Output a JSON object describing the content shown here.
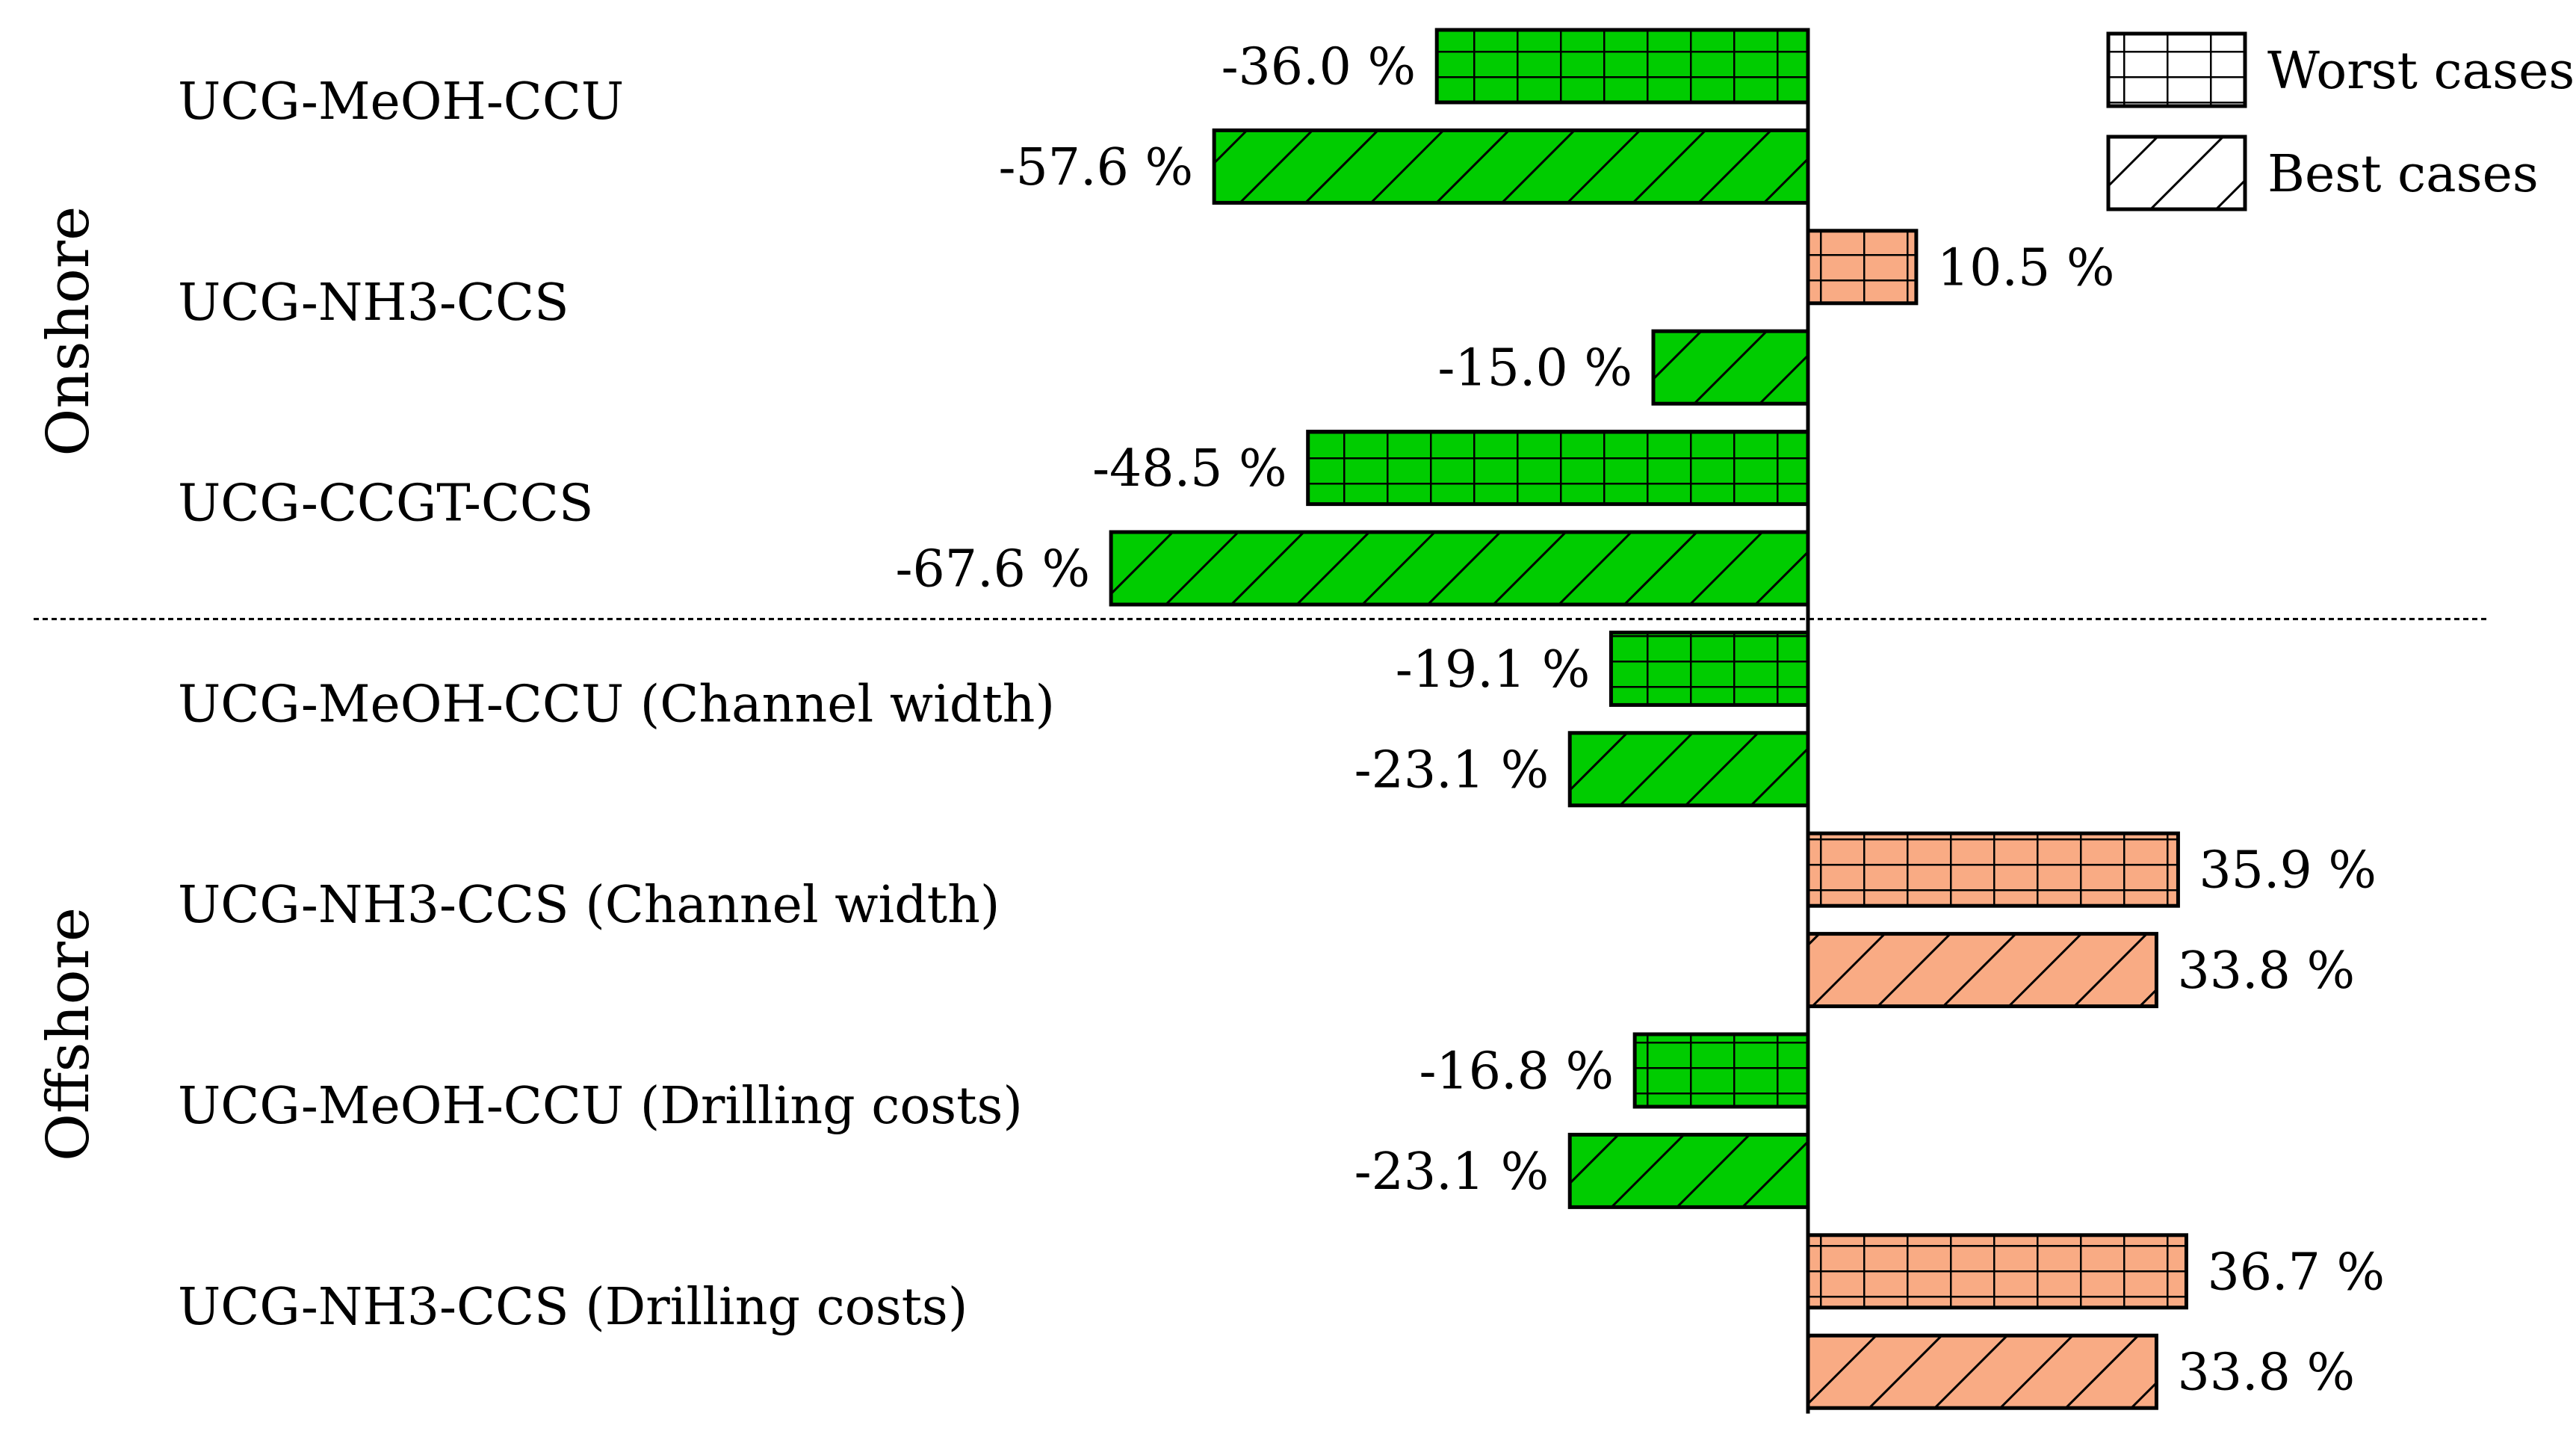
{
  "chart_data": {
    "type": "bar",
    "orientation": "horizontal",
    "groups": [
      {
        "name": "Onshore",
        "categories": [
          {
            "label": "UCG-MeOH-CCU",
            "values": [
              {
                "series": "Worst cases",
                "value": -36.0,
                "label": "-36.0 %"
              },
              {
                "series": "Best cases",
                "value": -57.6,
                "label": "-57.6 %"
              }
            ]
          },
          {
            "label": "UCG-NH3-CCS",
            "values": [
              {
                "series": "Worst cases",
                "value": 10.5,
                "label": "10.5 %"
              },
              {
                "series": "Best cases",
                "value": -15.0,
                "label": "-15.0 %"
              }
            ]
          },
          {
            "label": "UCG-CCGT-CCS",
            "values": [
              {
                "series": "Worst cases",
                "value": -48.5,
                "label": "-48.5 %"
              },
              {
                "series": "Best cases",
                "value": -67.6,
                "label": "-67.6 %"
              }
            ]
          }
        ]
      },
      {
        "name": "Offshore",
        "categories": [
          {
            "label": "UCG-MeOH-CCU (Channel width)",
            "values": [
              {
                "series": "Worst cases",
                "value": -19.1,
                "label": "-19.1 %"
              },
              {
                "series": "Best cases",
                "value": -23.1,
                "label": "-23.1 %"
              }
            ]
          },
          {
            "label": "UCG-NH3-CCS (Channel width)",
            "values": [
              {
                "series": "Worst cases",
                "value": 35.9,
                "label": "35.9 %"
              },
              {
                "series": "Best cases",
                "value": 33.8,
                "label": "33.8 %"
              }
            ]
          },
          {
            "label": "UCG-MeOH-CCU (Drilling costs)",
            "values": [
              {
                "series": "Worst cases",
                "value": -16.8,
                "label": "-16.8 %"
              },
              {
                "series": "Best cases",
                "value": -23.1,
                "label": "-23.1 %"
              }
            ]
          },
          {
            "label": "UCG-NH3-CCS (Drilling costs)",
            "values": [
              {
                "series": "Worst cases",
                "value": 36.7,
                "label": "36.7 %"
              },
              {
                "series": "Best cases",
                "value": 33.8,
                "label": "33.8 %"
              }
            ]
          }
        ]
      }
    ],
    "series": [
      {
        "name": "Worst cases",
        "pattern": "grid"
      },
      {
        "name": "Best cases",
        "pattern": "diagonal-hatch"
      }
    ],
    "colors": {
      "negative": "#00cc00",
      "positive": "#f9ab84",
      "outline": "#000000"
    },
    "legend_position": "top-right",
    "xlim": [
      -70,
      40
    ]
  }
}
